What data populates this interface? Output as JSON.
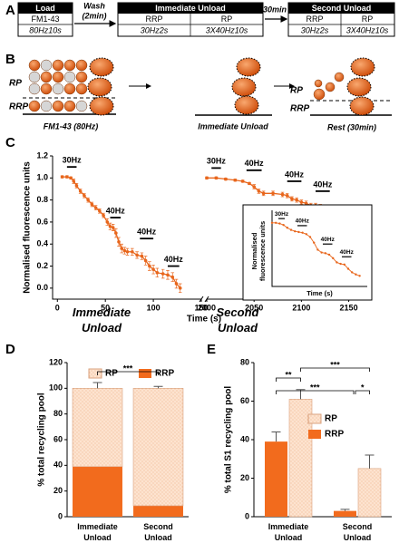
{
  "panel_labels": [
    "A",
    "B",
    "C",
    "D",
    "E"
  ],
  "protocol": {
    "load": {
      "title": "Load",
      "dye": "FM1-43",
      "stimulus": "80Hz10s"
    },
    "wash": {
      "label": "Wash",
      "duration": "(2min)"
    },
    "immediate_unload": {
      "title": "Immediate Unload",
      "pools": [
        "RRP",
        "RP"
      ],
      "stimuli": [
        "30Hz2s",
        "3X40Hz10s"
      ]
    },
    "rest": "30min",
    "second_unload": {
      "title": "Second Unload",
      "pools": [
        "RRP",
        "RP"
      ],
      "stimuli": [
        "30Hz2s",
        "3X40Hz10s"
      ]
    }
  },
  "schematic": {
    "pool_labels": [
      "RP",
      "RRP"
    ],
    "stages": [
      "FM1-43 (80Hz)",
      "Immediate Unload",
      "Rest (30min)"
    ]
  },
  "chart_data": [
    {
      "type": "line",
      "y_label": "Normalised fluorescence units",
      "x_label": "Time (s)",
      "xlim": [
        -5,
        2160
      ],
      "xbreak": [
        150,
        2000
      ],
      "xticks": [
        0,
        50,
        100,
        150,
        2000,
        2050,
        2100,
        2150
      ],
      "ylim": [
        -0.1,
        1.2
      ],
      "yticks": [
        {
          "value": 0,
          "label": "0.0"
        },
        0.2,
        0.4,
        0.6,
        0.8,
        {
          "value": 1,
          "label": "1.0"
        },
        1.2
      ],
      "series": [
        {
          "color": "#e8661c",
          "x": [
            5,
            10,
            14,
            17,
            20,
            24,
            28,
            32,
            36,
            40,
            44,
            48,
            52,
            55,
            58,
            61,
            64,
            67,
            70,
            73,
            78,
            83,
            88,
            92,
            96,
            100,
            104,
            110,
            115,
            120,
            124,
            128
          ],
          "values": [
            1.01,
            1.01,
            1.0,
            0.97,
            0.93,
            0.88,
            0.84,
            0.8,
            0.76,
            0.73,
            0.7,
            0.66,
            0.6,
            0.56,
            0.55,
            0.5,
            0.42,
            0.36,
            0.34,
            0.33,
            0.33,
            0.3,
            0.29,
            0.25,
            0.2,
            0.17,
            0.14,
            0.13,
            0.12,
            0.1,
            0.04,
            0.0
          ],
          "errors": [
            0.01,
            0.01,
            0.01,
            0.02,
            0.02,
            0.02,
            0.02,
            0.02,
            0.02,
            0.02,
            0.02,
            0.02,
            0.03,
            0.03,
            0.03,
            0.04,
            0.04,
            0.04,
            0.03,
            0.03,
            0.03,
            0.03,
            0.03,
            0.04,
            0.04,
            0.04,
            0.04,
            0.04,
            0.04,
            0.04,
            0.04,
            0.04
          ]
        },
        {
          "color": "#e8661c",
          "x": [
            2000,
            2010,
            2020,
            2030,
            2038,
            2045,
            2050,
            2055,
            2060,
            2070,
            2080,
            2085,
            2090,
            2095,
            2100,
            2105,
            2110,
            2115,
            2120,
            2125,
            2130,
            2135,
            2140,
            2145
          ],
          "values": [
            1.0,
            1.0,
            0.99,
            0.98,
            0.97,
            0.95,
            0.92,
            0.88,
            0.86,
            0.86,
            0.85,
            0.84,
            0.81,
            0.8,
            0.78,
            0.77,
            0.75,
            0.75,
            0.74,
            0.72,
            0.71,
            0.7,
            0.69,
            0.68
          ],
          "errors": [
            0.01,
            0.01,
            0.01,
            0.01,
            0.01,
            0.01,
            0.02,
            0.02,
            0.02,
            0.02,
            0.02,
            0.02,
            0.02,
            0.02,
            0.02,
            0.02,
            0.02,
            0.02,
            0.02,
            0.02,
            0.02,
            0.02,
            0.02,
            0.02
          ]
        }
      ],
      "annotations": [
        {
          "text": "30Hz",
          "x": [
            10,
            20
          ],
          "y": 1.1
        },
        {
          "text": "40Hz",
          "x": [
            55,
            66
          ],
          "y": 0.64
        },
        {
          "text": "40Hz",
          "x": [
            86,
            100
          ],
          "y": 0.45
        },
        {
          "text": "40Hz",
          "x": [
            115,
            127
          ],
          "y": 0.2
        },
        {
          "text": "30Hz",
          "x": [
            2005,
            2015
          ],
          "y": 1.09
        },
        {
          "text": "40Hz",
          "x": [
            2042,
            2058
          ],
          "y": 1.07
        },
        {
          "text": "40Hz",
          "x": [
            2085,
            2100
          ],
          "y": 0.97
        },
        {
          "text": "40Hz",
          "x": [
            2115,
            2130
          ],
          "y": 0.88
        }
      ],
      "labels": [
        "Immediate Unload",
        "Second Unload"
      ]
    },
    {
      "type": "line",
      "y_label": "Normalised fluorescence units",
      "x_label": "Time (s)",
      "xlim": [
        0,
        150
      ],
      "ylim": [
        0.1,
        1.1
      ],
      "series": [
        {
          "color": "#e8661c",
          "x": [
            0,
            6,
            12,
            18,
            24,
            30,
            36,
            42,
            48,
            54,
            60,
            66,
            72,
            78,
            84,
            90,
            96,
            102,
            108,
            114,
            120,
            126,
            132,
            138
          ],
          "values": [
            1.0,
            1.0,
            0.99,
            0.97,
            0.93,
            0.9,
            0.88,
            0.87,
            0.86,
            0.84,
            0.8,
            0.72,
            0.62,
            0.58,
            0.57,
            0.55,
            0.5,
            0.44,
            0.42,
            0.41,
            0.35,
            0.3,
            0.27,
            0.25
          ]
        }
      ],
      "annotations": [
        {
          "text": "30Hz",
          "x": [
            10,
            20
          ],
          "y": 1.06
        },
        {
          "text": "40Hz",
          "x": [
            40,
            55
          ],
          "y": 0.96
        },
        {
          "text": "40Hz",
          "x": [
            80,
            95
          ],
          "y": 0.7
        },
        {
          "text": "40Hz",
          "x": [
            110,
            125
          ],
          "y": 0.52
        }
      ]
    },
    {
      "type": "stacked_bar",
      "y_label": "% total recycling pool",
      "categories": [
        "Immediate Unload",
        "Second Unload"
      ],
      "ylim": [
        0,
        120
      ],
      "yticks": [
        0,
        20,
        40,
        60,
        80,
        100,
        120
      ],
      "legend": "top",
      "series": [
        {
          "name": "RRP",
          "color": "#f26b1d",
          "values": [
            39,
            8.5
          ],
          "errors": [
            4.5,
            1.5
          ]
        },
        {
          "name": "RP",
          "color": "#fde3cf",
          "pattern": "dots",
          "values": [
            61,
            91.5
          ],
          "errors": [
            4.5,
            1.5
          ]
        }
      ],
      "annotations": [
        "***"
      ]
    },
    {
      "type": "bar",
      "y_label": "% total S1 recycling pool",
      "categories": [
        "Immediate Unload",
        "Second Unload"
      ],
      "ylim": [
        0,
        80
      ],
      "yticks": [
        0,
        20,
        40,
        60,
        80
      ],
      "legend": "right",
      "series": [
        {
          "name": "RRP",
          "color": "#f26b1d",
          "values": [
            39,
            3
          ],
          "errors": [
            5,
            0.8
          ]
        },
        {
          "name": "RP",
          "color": "#fde3cf",
          "pattern": "dots",
          "values": [
            61,
            25
          ],
          "errors": [
            5,
            7
          ]
        }
      ],
      "annotations": [
        "**",
        "***",
        "***",
        "*"
      ]
    }
  ]
}
